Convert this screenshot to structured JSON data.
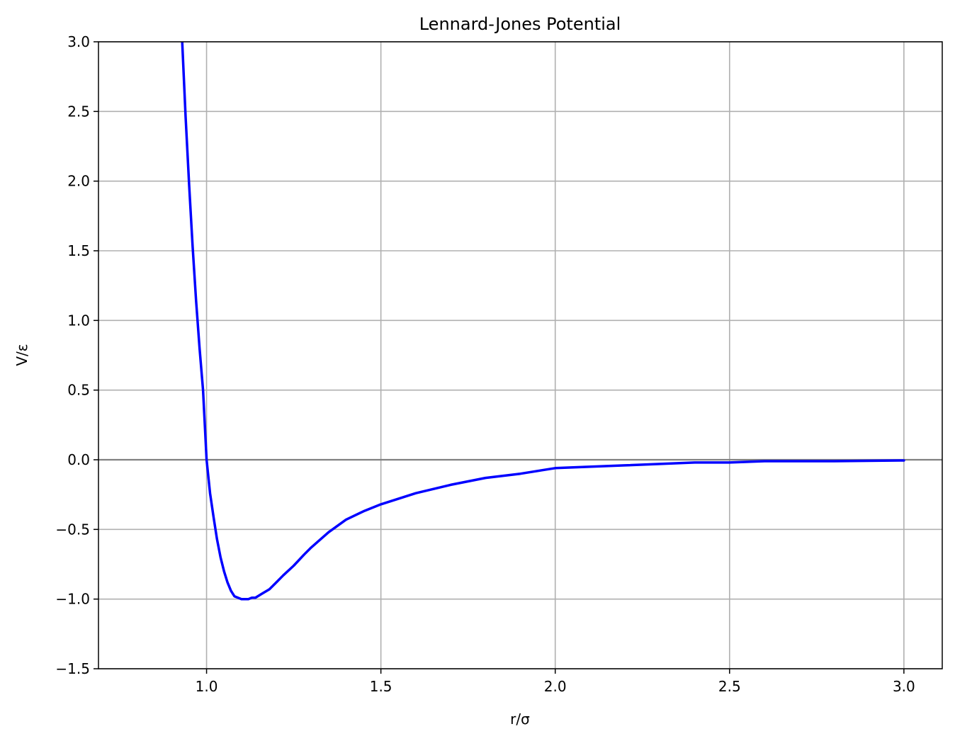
{
  "chart_data": {
    "type": "line",
    "title": "Lennard-Jones Potential",
    "xlabel": "r/σ",
    "ylabel": "V/ε",
    "xlim": [
      0.69,
      3.11
    ],
    "ylim": [
      -1.5,
      3.0
    ],
    "grid": true,
    "legend": "none",
    "x_ticks": [
      1.0,
      1.5,
      2.0,
      2.5,
      3.0
    ],
    "x_tick_labels": [
      "1.0",
      "1.5",
      "2.0",
      "2.5",
      "3.0"
    ],
    "y_ticks": [
      -1.5,
      -1.0,
      -0.5,
      0.0,
      0.5,
      1.0,
      1.5,
      2.0,
      2.5,
      3.0
    ],
    "y_tick_labels": [
      "−1.5",
      "−1.0",
      "−0.5",
      "0.0",
      "0.5",
      "1.0",
      "1.5",
      "2.0",
      "2.5",
      "3.0"
    ],
    "reference_lines": [
      {
        "axis": "y",
        "value": 0.0,
        "color": "#808080"
      }
    ],
    "series": [
      {
        "color": "#0000ff",
        "x": [
          0.93,
          0.94,
          0.95,
          0.96,
          0.97,
          0.98,
          0.99,
          1.0,
          1.01,
          1.02,
          1.03,
          1.04,
          1.05,
          1.06,
          1.07,
          1.08,
          1.09,
          1.1,
          1.11,
          1.12,
          1.13,
          1.14,
          1.16,
          1.18,
          1.2,
          1.22,
          1.25,
          1.28,
          1.3,
          1.35,
          1.4,
          1.45,
          1.5,
          1.6,
          1.7,
          1.8,
          1.9,
          2.0,
          2.2,
          2.4,
          2.5,
          2.6,
          2.8,
          3.0
        ],
        "y": [
          3.01,
          2.46,
          1.97,
          1.53,
          1.14,
          0.8,
          0.5,
          0.0,
          -0.24,
          -0.41,
          -0.57,
          -0.7,
          -0.8,
          -0.88,
          -0.94,
          -0.98,
          -0.99,
          -1.0,
          -1.0,
          -1.0,
          -0.99,
          -0.99,
          -0.96,
          -0.93,
          -0.88,
          -0.83,
          -0.76,
          -0.68,
          -0.63,
          -0.52,
          -0.43,
          -0.37,
          -0.32,
          -0.24,
          -0.18,
          -0.13,
          -0.1,
          -0.06,
          -0.04,
          -0.02,
          -0.02,
          -0.01,
          -0.01,
          -0.005
        ]
      }
    ]
  }
}
